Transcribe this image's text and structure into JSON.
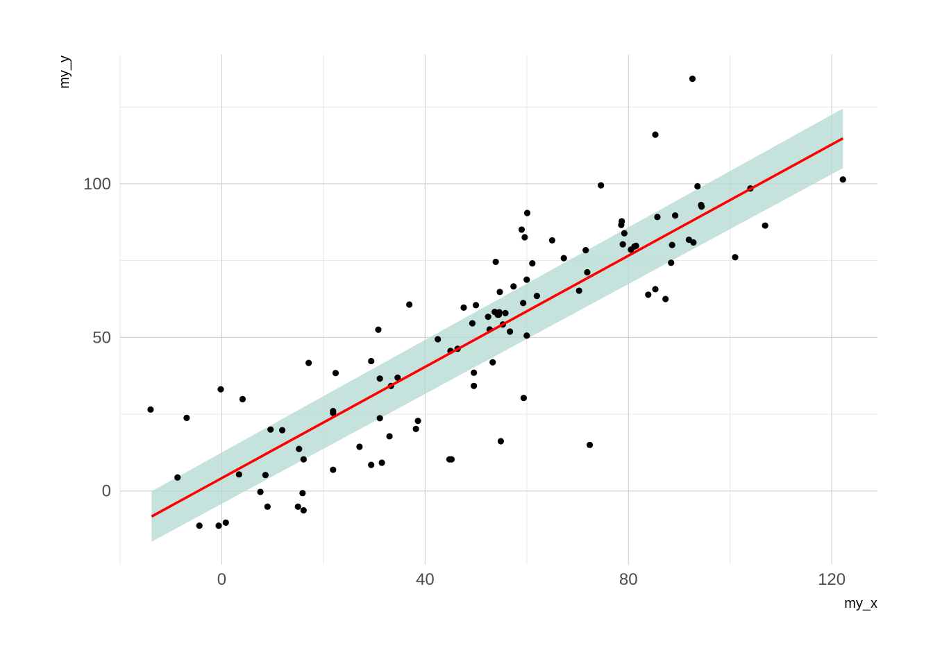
{
  "chart_data": {
    "type": "scatter",
    "title": "",
    "xlabel": "my_x",
    "ylabel": "my_y",
    "xlim": [
      -20,
      129
    ],
    "ylim": [
      -24,
      142
    ],
    "x_ticks": [
      0,
      40,
      80,
      120
    ],
    "x_tick_labels": [
      "0",
      "40",
      "80",
      "120"
    ],
    "x_minor_ticks": [
      -20,
      20,
      60,
      100
    ],
    "y_ticks": [
      0,
      50,
      100
    ],
    "y_tick_labels": [
      "0",
      "50",
      "100"
    ],
    "y_minor_ticks": [
      -25,
      25,
      75,
      125
    ],
    "grid": true,
    "legend": "none",
    "colors": {
      "points": "#000000",
      "fit_line": "#ff0000",
      "confidence_band": "#b2d8d0"
    },
    "series": [
      {
        "type": "scatter",
        "points": [
          [
            -14,
            26.5
          ],
          [
            -8.7,
            4.4
          ],
          [
            -6.9,
            23.8
          ],
          [
            -4.4,
            -11.3
          ],
          [
            -0.6,
            -11.3
          ],
          [
            -0.2,
            33.1
          ],
          [
            0.8,
            -10.3
          ],
          [
            3.4,
            5.4
          ],
          [
            4.1,
            29.9
          ],
          [
            7.6,
            -0.3
          ],
          [
            8.6,
            5.2
          ],
          [
            9.0,
            -5.1
          ],
          [
            9.6,
            20.0
          ],
          [
            11.9,
            19.8
          ],
          [
            15.0,
            -5.1
          ],
          [
            15.2,
            13.7
          ],
          [
            15.9,
            -0.7
          ],
          [
            16.1,
            10.3
          ],
          [
            16.1,
            -6.3
          ],
          [
            17.1,
            41.7
          ],
          [
            21.9,
            6.9
          ],
          [
            21.9,
            25.4
          ],
          [
            21.9,
            26.0
          ],
          [
            22.4,
            38.4
          ],
          [
            27.1,
            14.4
          ],
          [
            29.4,
            8.5
          ],
          [
            29.4,
            42.3
          ],
          [
            30.8,
            52.5
          ],
          [
            31.1,
            36.6
          ],
          [
            31.1,
            23.7
          ],
          [
            31.5,
            9.2
          ],
          [
            33.0,
            17.8
          ],
          [
            33.3,
            34.2
          ],
          [
            34.6,
            36.9
          ],
          [
            36.9,
            60.7
          ],
          [
            38.2,
            20.2
          ],
          [
            38.6,
            22.8
          ],
          [
            42.5,
            49.4
          ],
          [
            44.8,
            10.3
          ],
          [
            45.0,
            45.6
          ],
          [
            45.2,
            10.3
          ],
          [
            46.4,
            46.3
          ],
          [
            47.6,
            59.7
          ],
          [
            49.3,
            54.6
          ],
          [
            49.6,
            38.5
          ],
          [
            49.6,
            34.2
          ],
          [
            50.0,
            60.5
          ],
          [
            52.4,
            56.7
          ],
          [
            52.7,
            52.6
          ],
          [
            53.3,
            41.9
          ],
          [
            53.7,
            58.3
          ],
          [
            53.9,
            74.6
          ],
          [
            54.3,
            57.4
          ],
          [
            54.5,
            57.4
          ],
          [
            54.6,
            58.2
          ],
          [
            54.7,
            64.8
          ],
          [
            54.9,
            16.2
          ],
          [
            55.3,
            54.2
          ],
          [
            55.8,
            57.9
          ],
          [
            56.7,
            51.9
          ],
          [
            57.4,
            66.6
          ],
          [
            59.0,
            85.1
          ],
          [
            59.3,
            61.2
          ],
          [
            59.4,
            30.3
          ],
          [
            59.6,
            82.6
          ],
          [
            60.0,
            50.6
          ],
          [
            60.0,
            68.8
          ],
          [
            60.1,
            90.5
          ],
          [
            61.1,
            74.1
          ],
          [
            62.0,
            63.5
          ],
          [
            65.0,
            81.6
          ],
          [
            67.3,
            75.8
          ],
          [
            70.3,
            65.2
          ],
          [
            71.6,
            78.4
          ],
          [
            71.9,
            71.2
          ],
          [
            72.4,
            15.0
          ],
          [
            74.6,
            99.5
          ],
          [
            78.6,
            86.6
          ],
          [
            78.7,
            87.8
          ],
          [
            78.9,
            80.3
          ],
          [
            79.2,
            83.9
          ],
          [
            80.5,
            78.6
          ],
          [
            81.2,
            79.6
          ],
          [
            81.5,
            79.8
          ],
          [
            83.9,
            63.9
          ],
          [
            85.3,
            65.7
          ],
          [
            85.3,
            116.0
          ],
          [
            85.7,
            89.2
          ],
          [
            87.3,
            62.5
          ],
          [
            88.4,
            74.3
          ],
          [
            88.6,
            80.1
          ],
          [
            89.2,
            89.7
          ],
          [
            91.9,
            81.8
          ],
          [
            92.6,
            134.2
          ],
          [
            92.8,
            80.9
          ],
          [
            93.6,
            99.2
          ],
          [
            94.3,
            93.1
          ],
          [
            94.4,
            92.6
          ],
          [
            101.0,
            76.1
          ],
          [
            104.0,
            98.5
          ],
          [
            106.9,
            86.4
          ],
          [
            122.2,
            101.4
          ]
        ]
      },
      {
        "type": "line",
        "x": [
          -13.8,
          122.2
        ],
        "y": [
          -8.3,
          114.8
        ]
      },
      {
        "type": "area",
        "x": [
          -13.8,
          122.2
        ],
        "y_low": [
          -16.5,
          105.1
        ],
        "y_high": [
          -0.1,
          124.5
        ]
      }
    ]
  }
}
